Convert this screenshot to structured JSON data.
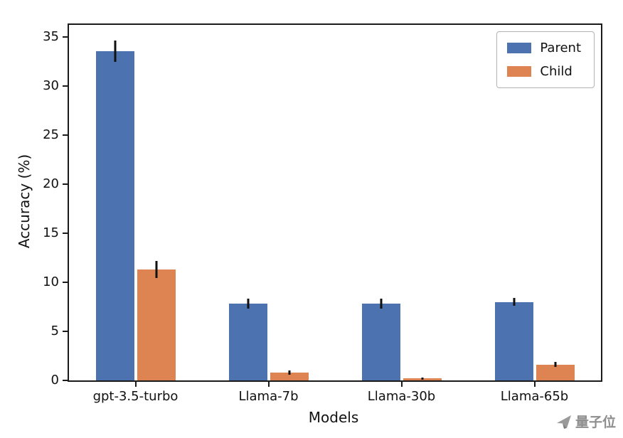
{
  "chart_data": {
    "type": "bar",
    "title": "",
    "xlabel": "Models",
    "ylabel": "Accuracy (%)",
    "categories": [
      "gpt-3.5-turbo",
      "Llama-7b",
      "Llama-30b",
      "Llama-65b"
    ],
    "series": [
      {
        "name": "Parent",
        "color": "#4C72B0",
        "values": [
          33.5,
          7.8,
          7.8,
          8.0
        ],
        "errors": [
          1.1,
          0.5,
          0.5,
          0.4
        ]
      },
      {
        "name": "Child",
        "color": "#DD8452",
        "values": [
          11.3,
          0.8,
          0.2,
          1.6
        ],
        "errors": [
          0.9,
          0.25,
          0.12,
          0.25
        ]
      }
    ],
    "ylim": [
      0,
      36.2
    ],
    "yticks": [
      0,
      5,
      10,
      15,
      20,
      25,
      30,
      35
    ],
    "grid": false,
    "legend_position": "upper right",
    "error_bars": true
  },
  "watermark": {
    "text": "量子位",
    "logo": "qbitai-logo-icon",
    "color": "#8e8e8e"
  }
}
